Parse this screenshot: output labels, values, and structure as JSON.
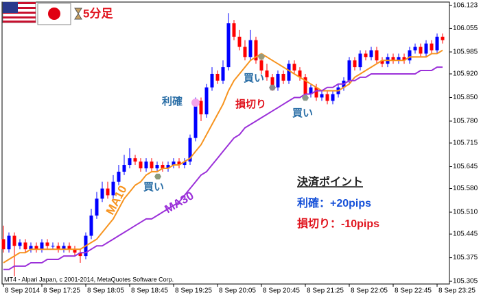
{
  "header": {
    "timeframe": "5分足"
  },
  "chart_data": {
    "type": "candlestick",
    "categories": [
      "8 Sep 2014",
      null,
      null,
      null,
      null,
      null,
      null,
      "8 Sep 17:25",
      null,
      null,
      null,
      null,
      null,
      null,
      null,
      "8 Sep 18:05",
      null,
      null,
      null,
      null,
      null,
      null,
      null,
      "8 Sep 18:45",
      null,
      null,
      null,
      null,
      null,
      null,
      null,
      "8 Sep 19:25",
      null,
      null,
      null,
      null,
      null,
      null,
      null,
      "8 Sep 20:05",
      null,
      null,
      null,
      null,
      null,
      null,
      null,
      "8 Sep 20:45",
      null,
      null,
      null,
      null,
      null,
      null,
      null,
      "8 Sep 21:25",
      null,
      null,
      null,
      null,
      null,
      null,
      null,
      "8 Sep 22:05",
      null,
      null,
      null,
      null,
      null,
      null,
      null,
      "8 Sep 22:45",
      null,
      null,
      null,
      null,
      null,
      null,
      null,
      "8 Sep 23:25",
      null
    ],
    "open": [
      105.43,
      105.4,
      105.44,
      105.41,
      105.42,
      105.4,
      105.41,
      105.4,
      105.42,
      105.41,
      105.41,
      105.4,
      105.41,
      105.4,
      105.39,
      105.38,
      105.44,
      105.5,
      105.55,
      105.58,
      105.56,
      105.6,
      105.63,
      105.65,
      105.67,
      105.66,
      105.64,
      105.66,
      105.64,
      105.65,
      105.64,
      105.65,
      105.66,
      105.65,
      105.66,
      105.73,
      105.84,
      105.8,
      105.88,
      105.92,
      105.9,
      105.94,
      106.07,
      106.03,
      106.0,
      105.97,
      106.02,
      105.96,
      105.93,
      105.91,
      105.88,
      105.92,
      105.9,
      105.95,
      105.93,
      105.91,
      105.86,
      105.88,
      105.85,
      105.86,
      105.84,
      105.86,
      105.88,
      105.9,
      105.96,
      105.94,
      105.98,
      105.97,
      105.99,
      105.96,
      105.95,
      105.97,
      105.96,
      105.97,
      105.96,
      105.99,
      106.0,
      105.98,
      106.01,
      105.99,
      106.03
    ],
    "high": [
      105.47,
      105.45,
      105.45,
      105.43,
      105.43,
      105.42,
      105.42,
      105.43,
      105.43,
      105.42,
      105.42,
      105.42,
      105.42,
      105.41,
      105.4,
      105.45,
      105.52,
      105.57,
      105.6,
      105.6,
      105.62,
      105.65,
      105.68,
      105.7,
      105.68,
      105.67,
      105.67,
      105.67,
      105.66,
      105.66,
      105.66,
      105.67,
      105.67,
      105.67,
      105.74,
      105.85,
      105.85,
      105.89,
      105.94,
      105.93,
      105.96,
      106.1,
      106.08,
      106.05,
      106.02,
      106.05,
      106.03,
      105.97,
      105.95,
      105.92,
      105.93,
      105.93,
      105.96,
      105.96,
      105.94,
      105.92,
      105.89,
      105.89,
      105.87,
      105.87,
      105.87,
      105.89,
      105.91,
      105.97,
      105.97,
      105.99,
      105.99,
      106.0,
      106.0,
      105.97,
      105.98,
      105.98,
      105.98,
      105.98,
      106.0,
      106.01,
      106.01,
      106.02,
      106.02,
      106.04,
      106.04
    ],
    "low": [
      105.39,
      105.39,
      105.32,
      105.4,
      105.39,
      105.39,
      105.39,
      105.39,
      105.4,
      105.4,
      105.39,
      105.39,
      105.39,
      105.38,
      105.36,
      105.37,
      105.43,
      105.49,
      105.54,
      105.55,
      105.55,
      105.59,
      105.62,
      105.64,
      105.65,
      105.63,
      105.63,
      105.63,
      105.63,
      105.63,
      105.63,
      105.64,
      105.64,
      105.64,
      105.65,
      105.72,
      105.78,
      105.79,
      105.87,
      105.89,
      105.89,
      105.93,
      106.02,
      105.99,
      105.96,
      105.96,
      105.95,
      105.92,
      105.9,
      105.87,
      105.87,
      105.89,
      105.89,
      105.92,
      105.9,
      105.85,
      105.85,
      105.84,
      105.84,
      105.83,
      105.83,
      105.85,
      105.87,
      105.89,
      105.93,
      105.93,
      105.96,
      105.96,
      105.95,
      105.94,
      105.94,
      105.95,
      105.95,
      105.95,
      105.95,
      105.98,
      105.97,
      105.97,
      105.98,
      105.98,
      106.01
    ],
    "close": [
      105.4,
      105.44,
      105.41,
      105.42,
      105.4,
      105.41,
      105.4,
      105.42,
      105.41,
      105.41,
      105.4,
      105.41,
      105.4,
      105.39,
      105.38,
      105.44,
      105.5,
      105.55,
      105.58,
      105.56,
      105.6,
      105.63,
      105.65,
      105.67,
      105.66,
      105.64,
      105.66,
      105.64,
      105.65,
      105.64,
      105.65,
      105.66,
      105.65,
      105.66,
      105.73,
      105.84,
      105.8,
      105.88,
      105.92,
      105.9,
      105.94,
      106.07,
      106.03,
      106.0,
      105.97,
      106.02,
      105.96,
      105.93,
      105.91,
      105.88,
      105.92,
      105.9,
      105.95,
      105.93,
      105.91,
      105.86,
      105.88,
      105.85,
      105.86,
      105.84,
      105.86,
      105.88,
      105.9,
      105.96,
      105.94,
      105.98,
      105.97,
      105.99,
      105.96,
      105.95,
      105.97,
      105.96,
      105.97,
      105.96,
      105.99,
      106.0,
      105.98,
      106.01,
      105.99,
      106.03,
      106.02
    ],
    "up_color": "#0000ff",
    "down_color": "#ff0000",
    "lines": [
      {
        "name": "MA10",
        "color": "#f7931e",
        "values": [
          105.36,
          105.37,
          105.38,
          105.39,
          105.39,
          105.4,
          105.4,
          105.4,
          105.4,
          105.4,
          105.4,
          105.4,
          105.4,
          105.4,
          105.4,
          105.41,
          105.42,
          105.43,
          105.45,
          105.47,
          105.49,
          105.52,
          105.55,
          105.57,
          105.59,
          105.6,
          105.62,
          105.63,
          105.63,
          105.64,
          105.64,
          105.65,
          105.65,
          105.66,
          105.67,
          105.69,
          105.71,
          105.74,
          105.77,
          105.8,
          105.83,
          105.87,
          105.9,
          105.92,
          105.94,
          105.96,
          105.97,
          105.98,
          105.97,
          105.96,
          105.95,
          105.94,
          105.93,
          105.92,
          105.91,
          105.9,
          105.89,
          105.88,
          105.87,
          105.87,
          105.87,
          105.87,
          105.88,
          105.89,
          105.91,
          105.92,
          105.93,
          105.94,
          105.95,
          105.96,
          105.96,
          105.96,
          105.96,
          105.96,
          105.97,
          105.97,
          105.97,
          105.97,
          105.98,
          105.98,
          105.99
        ]
      },
      {
        "name": "MA30",
        "color": "#9b30d9",
        "values": [
          105.34,
          105.34,
          105.35,
          105.35,
          105.35,
          105.36,
          105.36,
          105.36,
          105.37,
          105.37,
          105.37,
          105.38,
          105.38,
          105.38,
          105.39,
          105.39,
          105.4,
          105.41,
          105.41,
          105.42,
          105.43,
          105.44,
          105.45,
          105.46,
          105.47,
          105.48,
          105.49,
          105.49,
          105.5,
          105.51,
          105.52,
          105.53,
          105.54,
          105.56,
          105.58,
          105.6,
          105.62,
          105.63,
          105.65,
          105.67,
          105.69,
          105.71,
          105.73,
          105.74,
          105.76,
          105.77,
          105.78,
          105.79,
          105.8,
          105.81,
          105.82,
          105.83,
          105.84,
          105.85,
          105.85,
          105.86,
          105.86,
          105.87,
          105.87,
          105.88,
          105.88,
          105.89,
          105.89,
          105.9,
          105.9,
          105.91,
          105.91,
          105.92,
          105.92,
          105.92,
          105.92,
          105.92,
          105.92,
          105.92,
          105.92,
          105.92,
          105.93,
          105.93,
          105.93,
          105.94,
          105.94
        ]
      }
    ],
    "ylim": [
      105.297,
      106.133
    ],
    "yticks": [
      106.123,
      106.055,
      105.985,
      {
        "value": 105.92,
        "label": "105.920"
      },
      {
        "value": 105.85,
        "label": "105.850"
      },
      {
        "value": 105.78,
        "label": "105.780"
      },
      105.715,
      105.645,
      {
        "value": 105.58,
        "label": "105.580"
      },
      {
        "value": 105.51,
        "label": "105.510"
      },
      105.445,
      105.375,
      105.305
    ],
    "grid": false,
    "annotations": [
      "利確",
      "損切り",
      "買い",
      "買い",
      "買い"
    ],
    "summary": {
      "title": "決済ポイント",
      "take_profit": "利確：+20pips",
      "stop_loss": "損切り：-10pips"
    },
    "copyright": "MT4 - Alpari Japan, c 2001-2014, MetaQuotes Software Corp."
  }
}
